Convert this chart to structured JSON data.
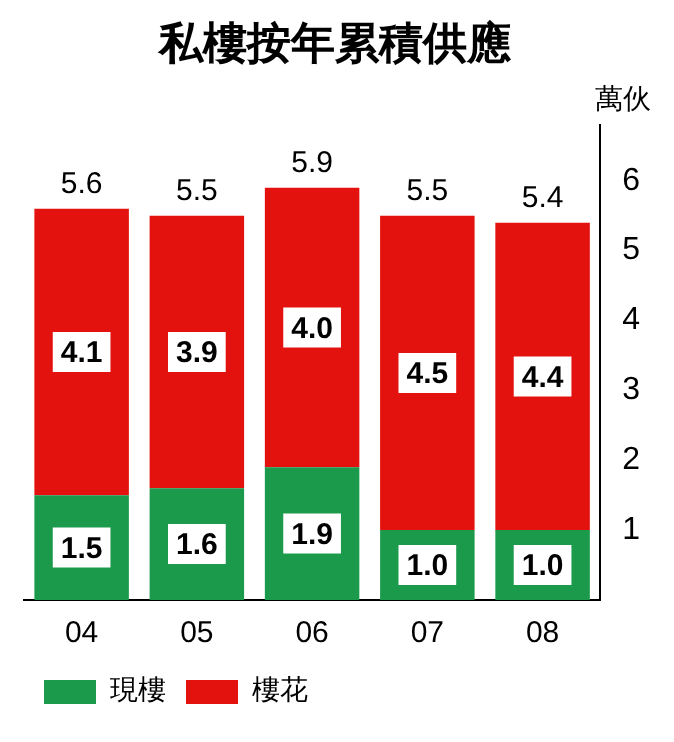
{
  "chart_data": {
    "type": "bar",
    "title": "私樓按年累積供應",
    "ylabel": "萬伙",
    "categories": [
      "04",
      "05",
      "06",
      "07",
      "08"
    ],
    "series": [
      {
        "name": "現樓",
        "color": "#1c9a4c",
        "values": [
          1.5,
          1.6,
          1.9,
          1.0,
          1.0
        ],
        "value_labels": [
          "1.5",
          "1.6",
          "1.9",
          "1.0",
          "1.0"
        ]
      },
      {
        "name": "樓花",
        "color": "#e3120f",
        "values": [
          4.1,
          3.9,
          4.0,
          4.5,
          4.4
        ],
        "value_labels": [
          "4.1",
          "3.9",
          "4.0",
          "4.5",
          "4.4"
        ]
      }
    ],
    "stacked": true,
    "ylim": [
      0,
      6.8
    ],
    "yticks": [
      1,
      2,
      3,
      4,
      5,
      6
    ],
    "grid": false,
    "legend": "bottom left",
    "totals": [
      "5.6",
      "5.5",
      "5.9",
      "5.5",
      "5.4"
    ]
  }
}
